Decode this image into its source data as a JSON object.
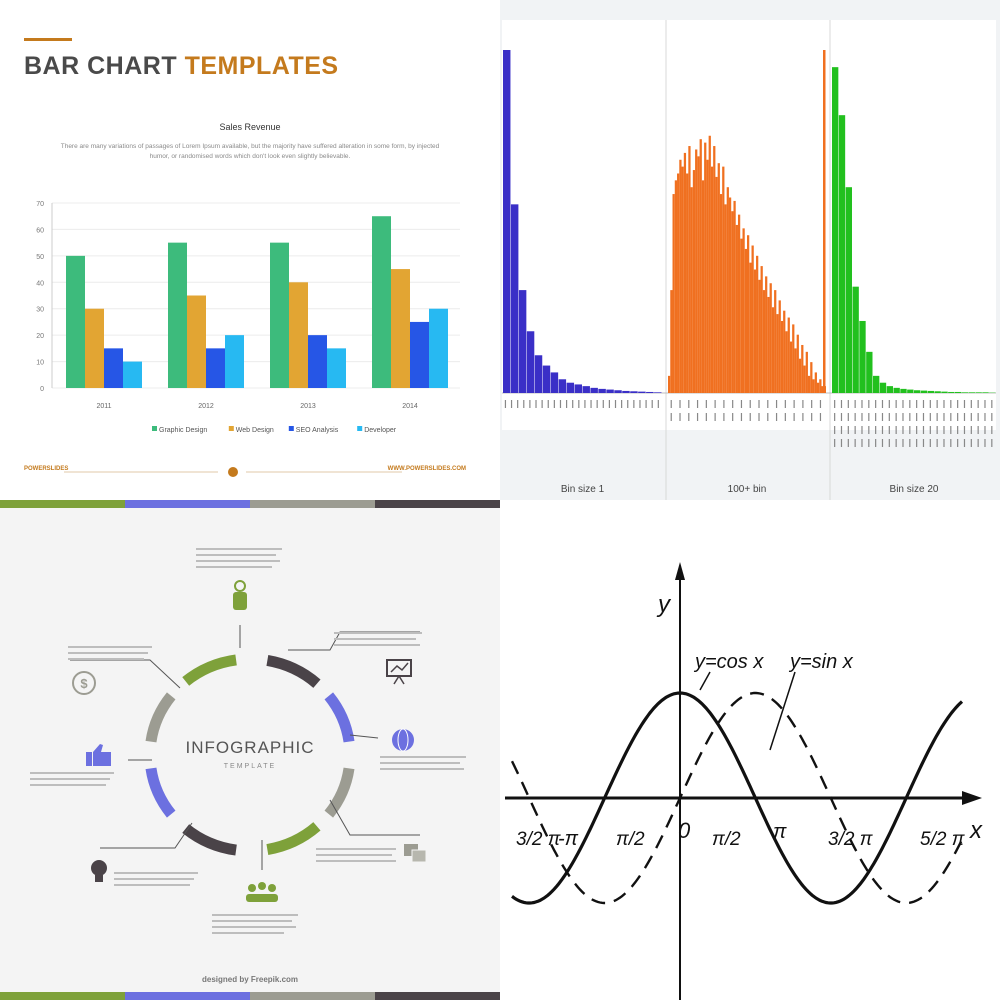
{
  "bar_panel": {
    "title_part1": "BAR CHART",
    "title_part2": "TEMPLATES",
    "footer_left": "POWERSLIDES",
    "footer_right": "WWW.POWERSLIDES.COM",
    "colors": {
      "accent": "#c47a1d",
      "graphic": "#3dbb7c",
      "web": "#e2a533",
      "seo": "#2656e6",
      "dev": "#27b9f2"
    }
  },
  "histogram_panel": {
    "colors": {
      "blue": "#3a2fc7",
      "orange": "#f07020",
      "green": "#22c01e"
    }
  },
  "infographic_panel": {
    "title": "INFOGRAPHIC",
    "subtitle": "TEMPLATE",
    "credit": "designed by Freepik.com",
    "icons": [
      "pointer-icon",
      "presentation-icon",
      "globe-icon",
      "documents-icon",
      "people-icon",
      "lightbulb-icon",
      "thumbs-up-icon",
      "dollar-icon"
    ],
    "colors": {
      "green": "#7ea13a",
      "dark": "#4a4348",
      "blue": "#6c70e0",
      "gray": "#9c9c92"
    }
  },
  "trig_panel": {
    "y_axis_label": "y",
    "x_axis_label": "x",
    "cos_label": "y=cos x",
    "sin_label": "y=sin x",
    "origin_label": "0",
    "tick_neg_3pi2": "3/2 π",
    "tick_neg_pi": "-π",
    "tick_neg_pi2": "π/2",
    "tick_pi2": "π/2",
    "tick_pi": "π",
    "tick_3pi2": "3/2 π",
    "tick_5pi2": "5/2 π"
  },
  "chart_data": [
    {
      "type": "bar",
      "title": "Sales Revenue",
      "subtitle": "There are many variations of passages of Lorem Ipsum available, but the majority have suffered alteration in some form, by injected humor, or randomised words which don't look even slightly believable.",
      "categories": [
        "2011",
        "2012",
        "2013",
        "2014"
      ],
      "series": [
        {
          "name": "Graphic Design",
          "values": [
            50,
            55,
            55,
            65
          ]
        },
        {
          "name": "Web Design",
          "values": [
            30,
            35,
            40,
            45
          ]
        },
        {
          "name": "SEO Analysis",
          "values": [
            15,
            15,
            20,
            25
          ]
        },
        {
          "name": "Developer",
          "values": [
            10,
            20,
            15,
            30
          ]
        }
      ],
      "yticks": [
        0,
        10,
        20,
        30,
        40,
        50,
        60,
        70
      ],
      "ylim": [
        0,
        70
      ],
      "grid": true,
      "legend": "bottom"
    },
    {
      "type": "bar",
      "sections": [
        {
          "label": "Bin size 1",
          "color": "blue",
          "values": [
            100,
            55,
            30,
            18,
            11,
            8,
            6,
            4,
            3,
            2.5,
            2,
            1.5,
            1.2,
            1,
            0.8,
            0.6,
            0.5,
            0.4,
            0.3,
            0.2
          ]
        },
        {
          "label": "100+ bin",
          "color": "orange",
          "values": [
            5,
            30,
            58,
            62,
            64,
            68,
            66,
            70,
            64,
            72,
            60,
            65,
            71,
            69,
            74,
            62,
            73,
            68,
            75,
            66,
            72,
            63,
            67,
            58,
            66,
            55,
            60,
            57,
            53,
            56,
            49,
            52,
            45,
            48,
            42,
            46,
            38,
            43,
            36,
            40,
            33,
            37,
            30,
            34,
            28,
            32,
            25,
            30,
            23,
            27,
            21,
            24,
            18,
            22,
            15,
            20,
            13,
            17,
            10,
            14,
            8,
            12,
            5,
            9,
            4,
            6,
            3,
            4,
            2,
            2
          ]
        },
        {
          "label": "Bin size 20",
          "color": "green",
          "values": [
            95,
            81,
            60,
            31,
            21,
            12,
            5,
            3,
            2,
            1.5,
            1.2,
            1,
            0.8,
            0.7,
            0.6,
            0.5,
            0.4,
            0.3,
            0.3,
            0.2,
            0.2,
            0.2,
            0.2,
            0.1
          ]
        }
      ],
      "grid": false
    },
    {
      "type": "line",
      "series": [
        {
          "name": "y=cos x",
          "function": "cos",
          "style": "solid"
        },
        {
          "name": "y=sin x",
          "function": "sin",
          "style": "dashed"
        }
      ],
      "xlim": [
        -5.1,
        9.0
      ],
      "ylim": [
        -1.3,
        1.3
      ],
      "x_tick_labels": [
        "3/2 π",
        "-π",
        "π/2",
        "0",
        "π/2",
        "π",
        "3/2 π",
        "5/2 π"
      ],
      "xlabel": "x",
      "ylabel": "y"
    }
  ]
}
